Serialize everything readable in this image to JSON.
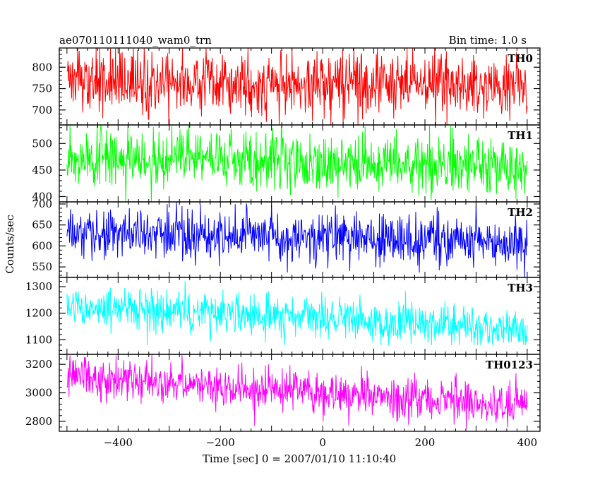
{
  "header": {
    "title": "ae070110111040_wam0_trn",
    "bin_time": "Bin time: 1.0 s"
  },
  "axes": {
    "ylabel": "Counts/sec",
    "xlabel": "Time [sec] 0 = 2007/01/10 11:10:40",
    "xlim": [
      -515,
      425
    ],
    "xticks": [
      -400,
      -200,
      0,
      200,
      400
    ],
    "xtick_labels": [
      "−400",
      "−200",
      "0",
      "200",
      "400"
    ]
  },
  "chart_data": [
    {
      "type": "line",
      "series_name": "TH0",
      "color": "#ff0000",
      "ylim": [
        665,
        845
      ],
      "yticks": [
        700,
        750,
        800
      ],
      "x_range": [
        -500,
        400
      ],
      "bin_time_s": 1.0,
      "mean_start": 770,
      "mean_end": 755,
      "amplitude": 38,
      "min": 665,
      "max": 845
    },
    {
      "type": "line",
      "series_name": "TH1",
      "color": "#00ff00",
      "ylim": [
        390,
        535
      ],
      "yticks": [
        400,
        450,
        500
      ],
      "x_range": [
        -500,
        400
      ],
      "bin_time_s": 1.0,
      "mean_start": 475,
      "mean_end": 455,
      "amplitude": 28,
      "min": 390,
      "max": 535
    },
    {
      "type": "line",
      "series_name": "TH2",
      "color": "#0000ff",
      "ylim": [
        525,
        705
      ],
      "yticks": [
        550,
        600,
        650,
        700
      ],
      "x_range": [
        -500,
        400
      ],
      "bin_time_s": 1.0,
      "mean_start": 635,
      "mean_end": 605,
      "amplitude": 30,
      "min": 525,
      "max": 705
    },
    {
      "type": "line",
      "series_name": "TH3",
      "color": "#00ffff",
      "ylim": [
        1045,
        1335
      ],
      "yticks": [
        1100,
        1200,
        1300
      ],
      "x_range": [
        -500,
        400
      ],
      "bin_time_s": 1.0,
      "mean_start": 1225,
      "mean_end": 1140,
      "amplitude": 38,
      "min": 1080,
      "max": 1335
    },
    {
      "type": "line",
      "series_name": "TH0123",
      "color": "#ff00ff",
      "ylim": [
        2730,
        3270
      ],
      "yticks": [
        2800,
        3000,
        3200
      ],
      "x_range": [
        -500,
        400
      ],
      "bin_time_s": 1.0,
      "mean_start": 3120,
      "mean_end": 2910,
      "amplitude": 75,
      "min": 2730,
      "max": 3270
    }
  ]
}
